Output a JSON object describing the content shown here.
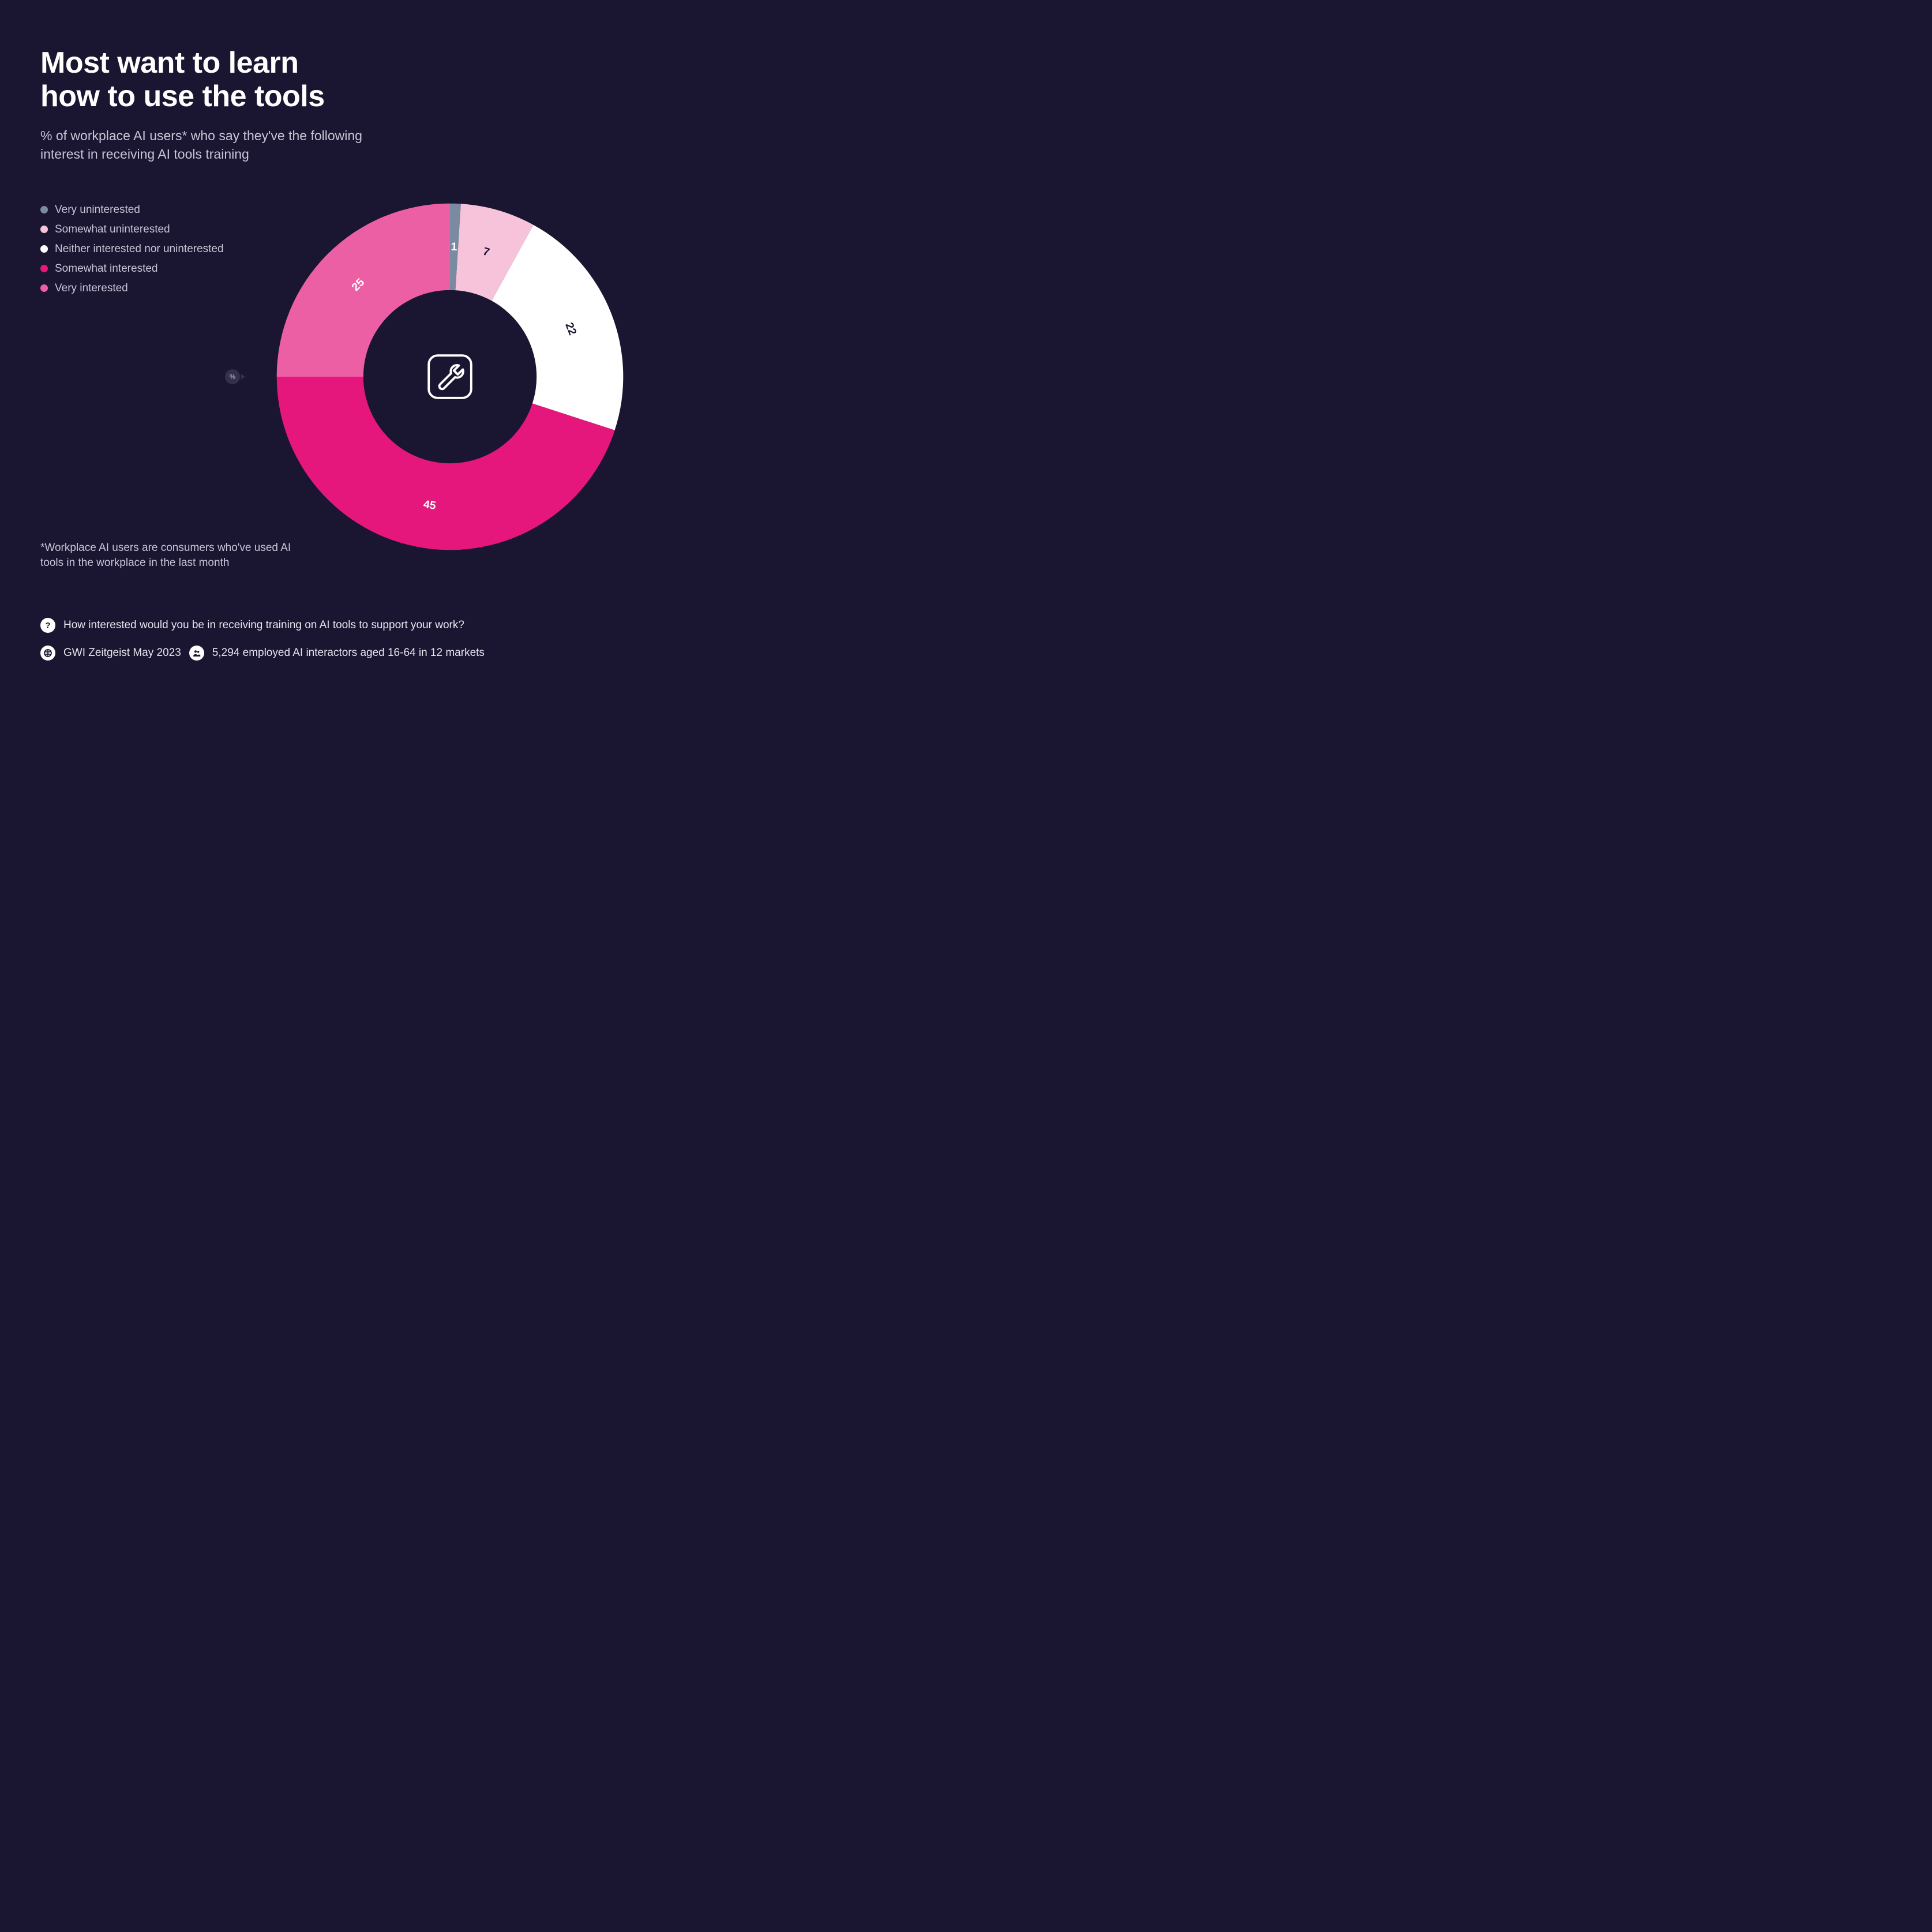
{
  "background_color": "#1a1530",
  "text_color_primary": "#ffffff",
  "text_color_secondary": "#c9c5d8",
  "title_line1": "Most want to learn",
  "title_line2": "how to use the tools",
  "title_fontsize": 52,
  "title_fontweight": 800,
  "subtitle": "% of workplace AI users* who say they've the following interest in receiving AI tools training",
  "subtitle_fontsize": 23,
  "legend": {
    "items": [
      {
        "label": "Very uninterested",
        "color": "#7a8aa0"
      },
      {
        "label": "Somewhat uninterested",
        "color": "#f7c3da"
      },
      {
        "label": "Neither interested nor uninterested",
        "color": "#ffffff"
      },
      {
        "label": "Somewhat interested",
        "color": "#e6177c"
      },
      {
        "label": "Very interested",
        "color": "#ed5fa4"
      }
    ],
    "fontsize": 19,
    "swatch_size": 13
  },
  "chart": {
    "type": "donut",
    "outer_radius": 310,
    "inner_radius": 155,
    "center_hole_color": "#1a1530",
    "start_angle_deg": -90,
    "slices": [
      {
        "key": "very_uninterested",
        "value": 1,
        "color": "#7a8aa0",
        "label_color": "#ffffff"
      },
      {
        "key": "somewhat_uninterested",
        "value": 7,
        "color": "#f7c3da",
        "label_color": "#1a1530"
      },
      {
        "key": "neither",
        "value": 22,
        "color": "#ffffff",
        "label_color": "#1a1530"
      },
      {
        "key": "somewhat_interested",
        "value": 45,
        "color": "#e6177c",
        "label_color": "#ffffff"
      },
      {
        "key": "very_interested",
        "value": 25,
        "color": "#ed5fa4",
        "label_color": "#ffffff"
      }
    ],
    "label_fontsize": 20,
    "label_fontweight": 700,
    "center_icon": "wrench",
    "center_icon_color": "#ffffff"
  },
  "percent_badge": {
    "symbol": "%",
    "bg": "#4a4560",
    "color": "#ffffff"
  },
  "footnote": "*Workplace AI users are consumers who've used AI tools in the workplace in the last month",
  "footnote_fontsize": 19,
  "meta": {
    "question": "How interested would you be in receiving training on AI tools to support your work?",
    "source": "GWI Zeitgeist May 2023",
    "sample": "5,294 employed AI interactors aged 16-64 in 12 markets",
    "icon_bg": "#ffffff",
    "icon_color": "#1a1530",
    "fontsize": 19
  }
}
